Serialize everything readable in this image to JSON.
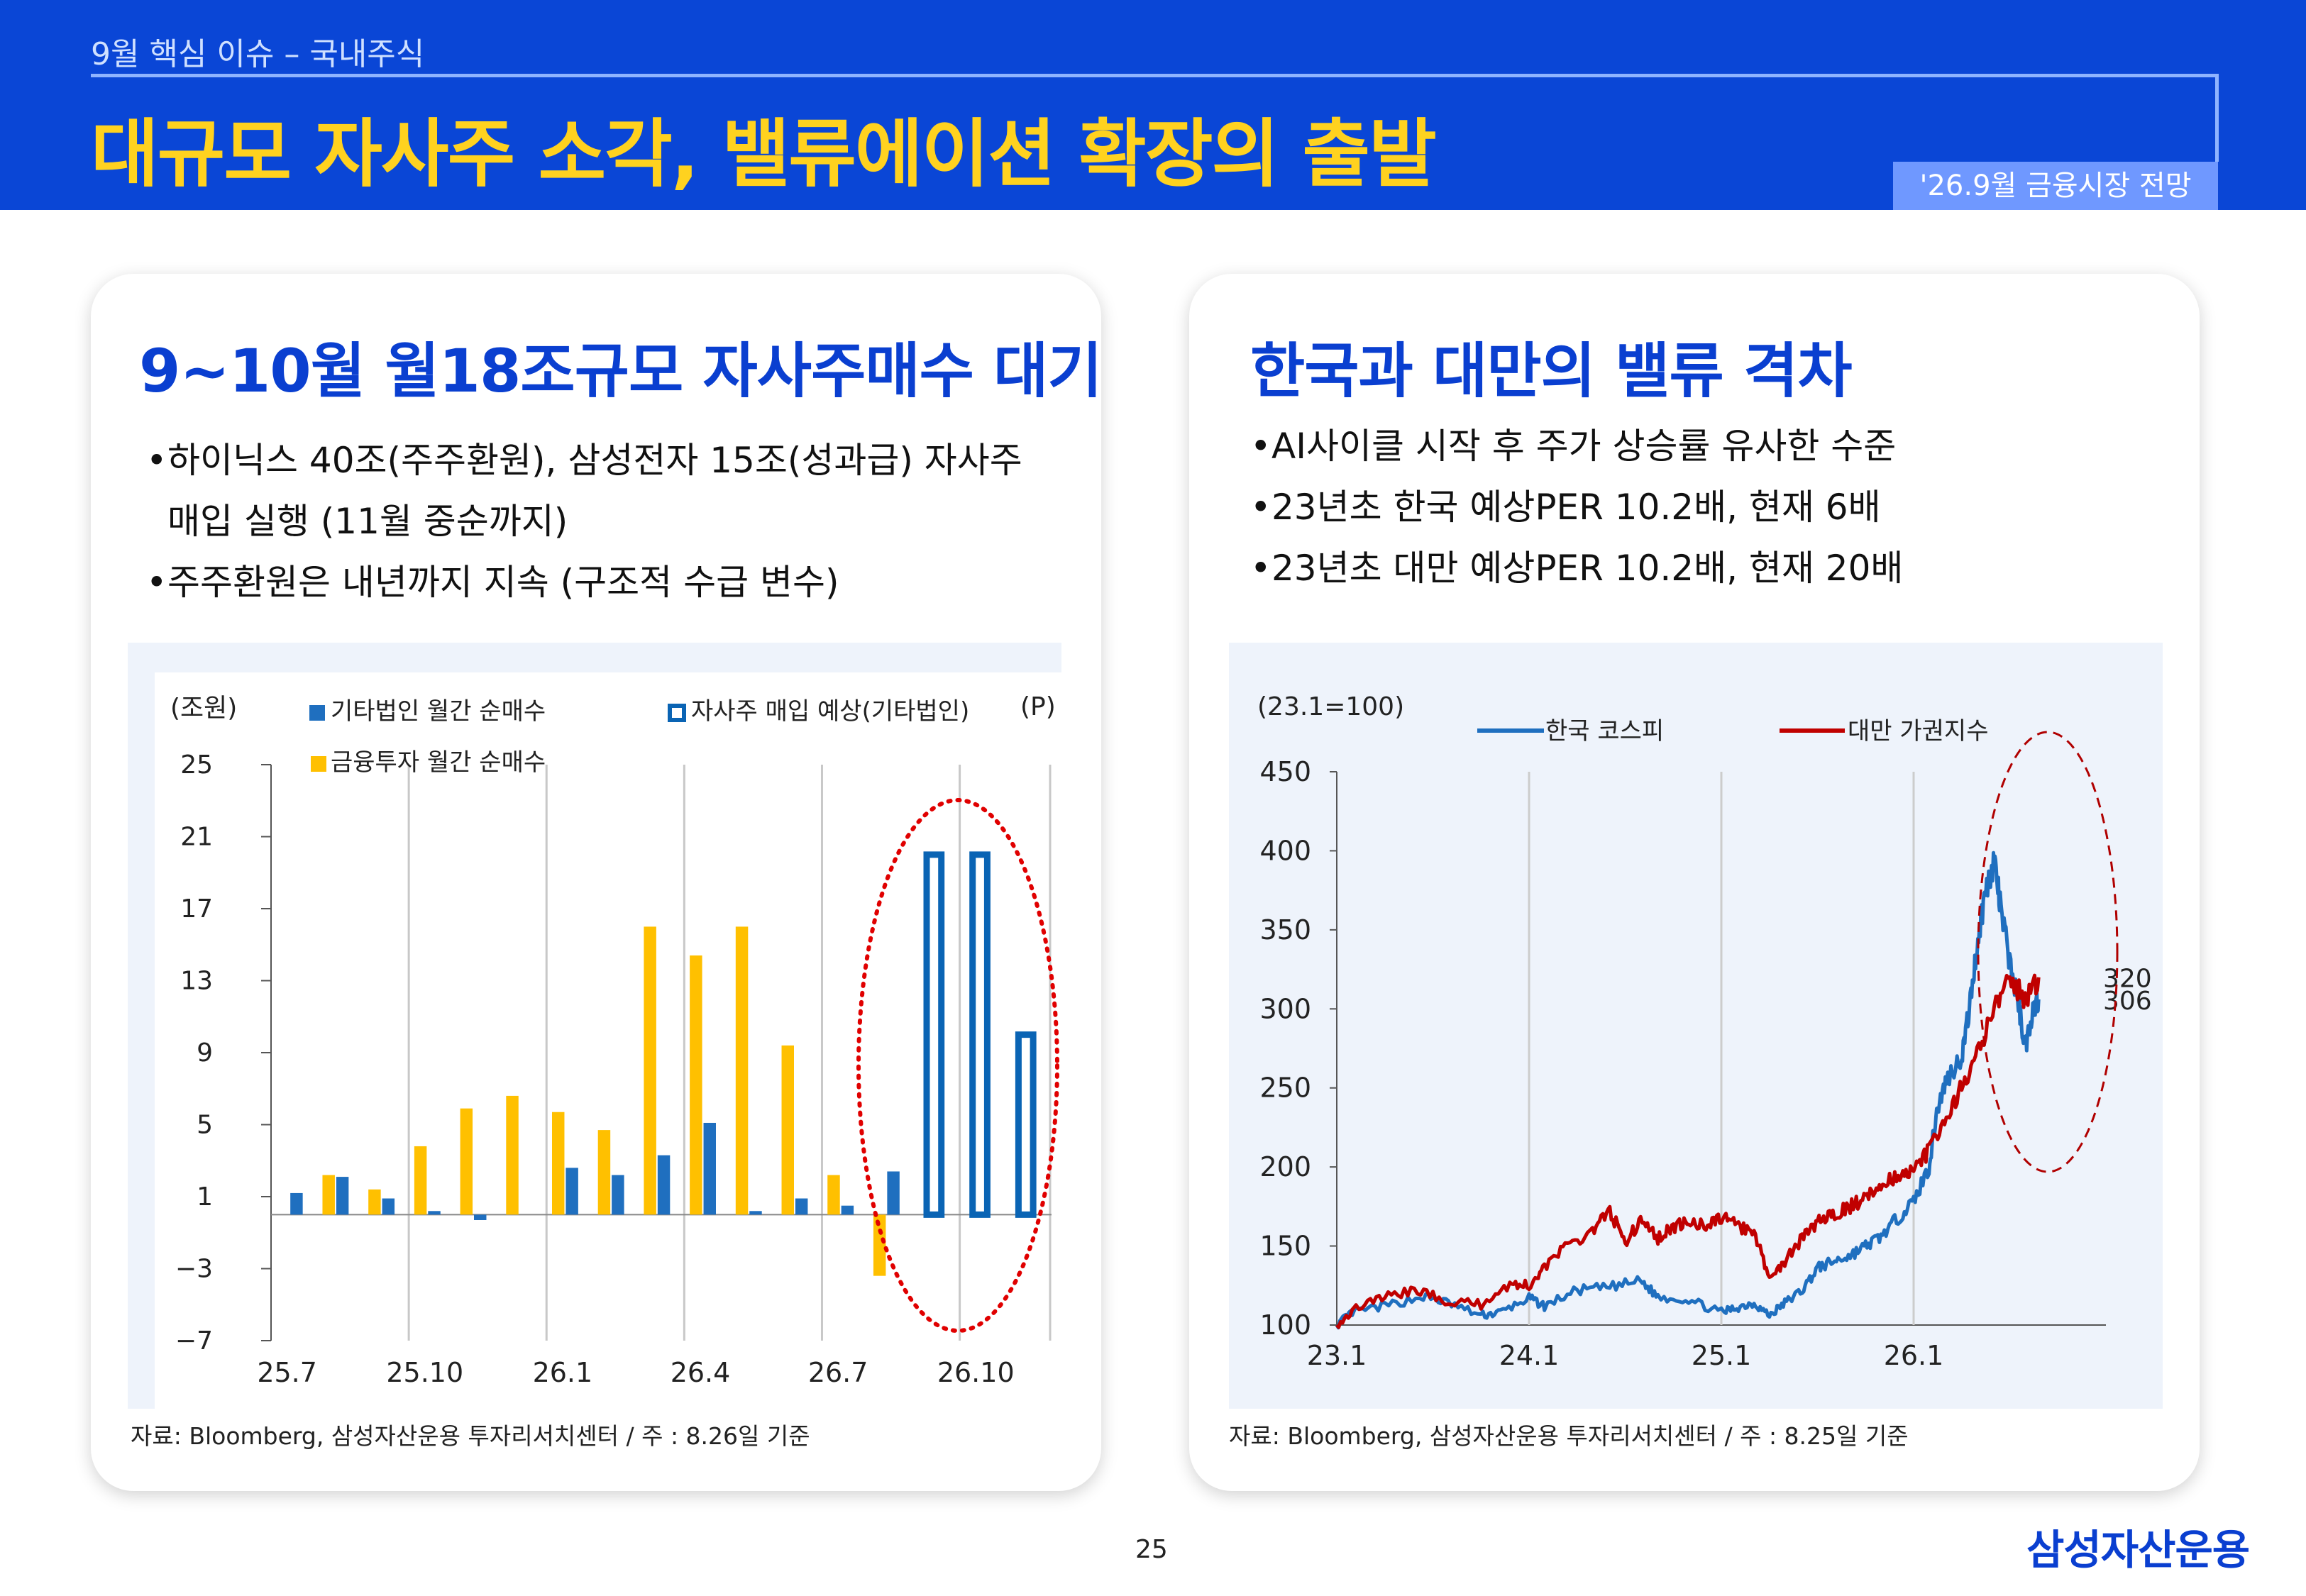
{
  "header": {
    "breadcrumb": "9월 핵심 이슈 – 국내주식",
    "title": "대규모 자사주 소각, 밸류에이션 확장의 출발",
    "badge": "'26.9월 금융시장 전망"
  },
  "left_card": {
    "heading": "9~10월 월18조규모 자사주매수 대기",
    "bullets": [
      {
        "line1": "하이닉스 40조(주주환원), 삼성전자 15조(성과급) 자사주",
        "line2": "매입 실행 (11월 중순까지)"
      },
      {
        "line1": "주주환원은 내년까지 지속 (구조적 수급 변수)",
        "line2": ""
      }
    ],
    "source": "자료: Bloomberg, 삼성자산운용 투자리서치센터 / 주 : 8.26일 기준"
  },
  "right_card": {
    "heading": "한국과 대만의 밸류 격차",
    "bullets": [
      "AI사이클 시작 후 주가 상승률 유사한 수준",
      "23년초 한국 예상PER 10.2배, 현재 6배",
      "23년초 대만 예상PER 10.2배, 현재 20배"
    ],
    "source": "자료: Bloomberg, 삼성자산운용 투자리서치센터 / 주 : 8.25일 기준"
  },
  "footer": {
    "page": "25",
    "logo": "삼성자산운용"
  },
  "chart_data": [
    {
      "type": "bar",
      "unit_label": "(조원)",
      "projection_label": "(P)",
      "ylim": [
        -7,
        25
      ],
      "yticks": [
        25,
        21,
        17,
        13,
        9,
        5,
        1,
        -3,
        -7
      ],
      "categories": [
        "25.7",
        "25.8",
        "25.9",
        "25.10",
        "25.11",
        "25.12",
        "26.1",
        "26.2",
        "26.3",
        "26.4",
        "26.5",
        "26.6",
        "26.7",
        "26.8",
        "26.9",
        "26.10",
        "26.11"
      ],
      "xtick_labels": [
        "25.7",
        "25.10",
        "26.1",
        "26.4",
        "26.7",
        "26.10"
      ],
      "series": [
        {
          "name": "금융투자 월간 순매수",
          "color": "#ffc000",
          "values": [
            null,
            2.2,
            1.4,
            3.8,
            5.9,
            6.6,
            5.7,
            4.7,
            16.0,
            14.4,
            16.0,
            9.4,
            2.2,
            -3.4,
            null,
            null,
            null
          ]
        },
        {
          "name": "기타법인 월간 순매수",
          "color": "#1f6fbf",
          "values": [
            1.2,
            2.1,
            0.9,
            0.2,
            -0.3,
            null,
            2.6,
            2.2,
            3.3,
            5.1,
            0.2,
            0.9,
            0.5,
            2.4,
            null,
            null,
            null
          ]
        },
        {
          "name": "자사주 매입 예상(기타법인)",
          "color": "#0a64b4",
          "values": [
            null,
            null,
            null,
            null,
            null,
            null,
            null,
            null,
            null,
            null,
            null,
            null,
            null,
            null,
            20.0,
            20.0,
            10.0
          ]
        }
      ],
      "grid": "vertical",
      "annotation": "red dotted ellipse around projected buyback bars"
    },
    {
      "type": "line",
      "unit_label": "(23.1=100)",
      "ylim": [
        100,
        450
      ],
      "yticks": [
        450,
        400,
        350,
        300,
        250,
        200,
        150,
        100
      ],
      "xtick_labels": [
        "23.1",
        "24.1",
        "25.1",
        "26.1"
      ],
      "xlim": [
        2023.0,
        2027.0
      ],
      "series": [
        {
          "name": "한국 코스피",
          "color": "#1f6fbf",
          "end_label": "306",
          "points": [
            [
              2023.0,
              100
            ],
            [
              2023.08,
              108
            ],
            [
              2023.25,
              112
            ],
            [
              2023.45,
              118
            ],
            [
              2023.58,
              114
            ],
            [
              2023.75,
              106
            ],
            [
              2023.85,
              108
            ],
            [
              2024.0,
              117
            ],
            [
              2024.08,
              112
            ],
            [
              2024.25,
              122
            ],
            [
              2024.42,
              124
            ],
            [
              2024.58,
              128
            ],
            [
              2024.67,
              118
            ],
            [
              2024.83,
              116
            ],
            [
              2025.0,
              108
            ],
            [
              2025.08,
              111
            ],
            [
              2025.17,
              114
            ],
            [
              2025.25,
              106
            ],
            [
              2025.33,
              114
            ],
            [
              2025.42,
              122
            ],
            [
              2025.5,
              136
            ],
            [
              2025.58,
              140
            ],
            [
              2025.67,
              144
            ],
            [
              2025.75,
              150
            ],
            [
              2025.83,
              156
            ],
            [
              2025.92,
              168
            ],
            [
              2026.0,
              178
            ],
            [
              2026.08,
              200
            ],
            [
              2026.12,
              235
            ],
            [
              2026.17,
              255
            ],
            [
              2026.25,
              270
            ],
            [
              2026.29,
              300
            ],
            [
              2026.33,
              340
            ],
            [
              2026.37,
              372
            ],
            [
              2026.42,
              395
            ],
            [
              2026.45,
              365
            ],
            [
              2026.5,
              330
            ],
            [
              2026.55,
              300
            ],
            [
              2026.58,
              275
            ],
            [
              2026.62,
              300
            ],
            [
              2026.65,
              306
            ]
          ]
        },
        {
          "name": "대만 가권지수",
          "color": "#c00000",
          "end_label": "320",
          "points": [
            [
              2023.0,
              100
            ],
            [
              2023.1,
              111
            ],
            [
              2023.25,
              118
            ],
            [
              2023.42,
              122
            ],
            [
              2023.58,
              115
            ],
            [
              2023.75,
              113
            ],
            [
              2023.9,
              126
            ],
            [
              2024.0,
              125
            ],
            [
              2024.08,
              137
            ],
            [
              2024.2,
              150
            ],
            [
              2024.33,
              160
            ],
            [
              2024.42,
              172
            ],
            [
              2024.5,
              153
            ],
            [
              2024.58,
              165
            ],
            [
              2024.67,
              155
            ],
            [
              2024.75,
              162
            ],
            [
              2024.83,
              165
            ],
            [
              2024.92,
              163
            ],
            [
              2025.0,
              168
            ],
            [
              2025.08,
              163
            ],
            [
              2025.17,
              158
            ],
            [
              2025.25,
              130
            ],
            [
              2025.33,
              140
            ],
            [
              2025.42,
              155
            ],
            [
              2025.5,
              165
            ],
            [
              2025.58,
              170
            ],
            [
              2025.67,
              175
            ],
            [
              2025.75,
              180
            ],
            [
              2025.83,
              190
            ],
            [
              2025.92,
              195
            ],
            [
              2026.0,
              198
            ],
            [
              2026.08,
              210
            ],
            [
              2026.17,
              230
            ],
            [
              2026.25,
              250
            ],
            [
              2026.33,
              270
            ],
            [
              2026.42,
              300
            ],
            [
              2026.5,
              320
            ],
            [
              2026.58,
              305
            ],
            [
              2026.65,
              320
            ]
          ]
        }
      ],
      "grid": "vertical",
      "annotation": "red dashed ellipse around recent period"
    }
  ]
}
